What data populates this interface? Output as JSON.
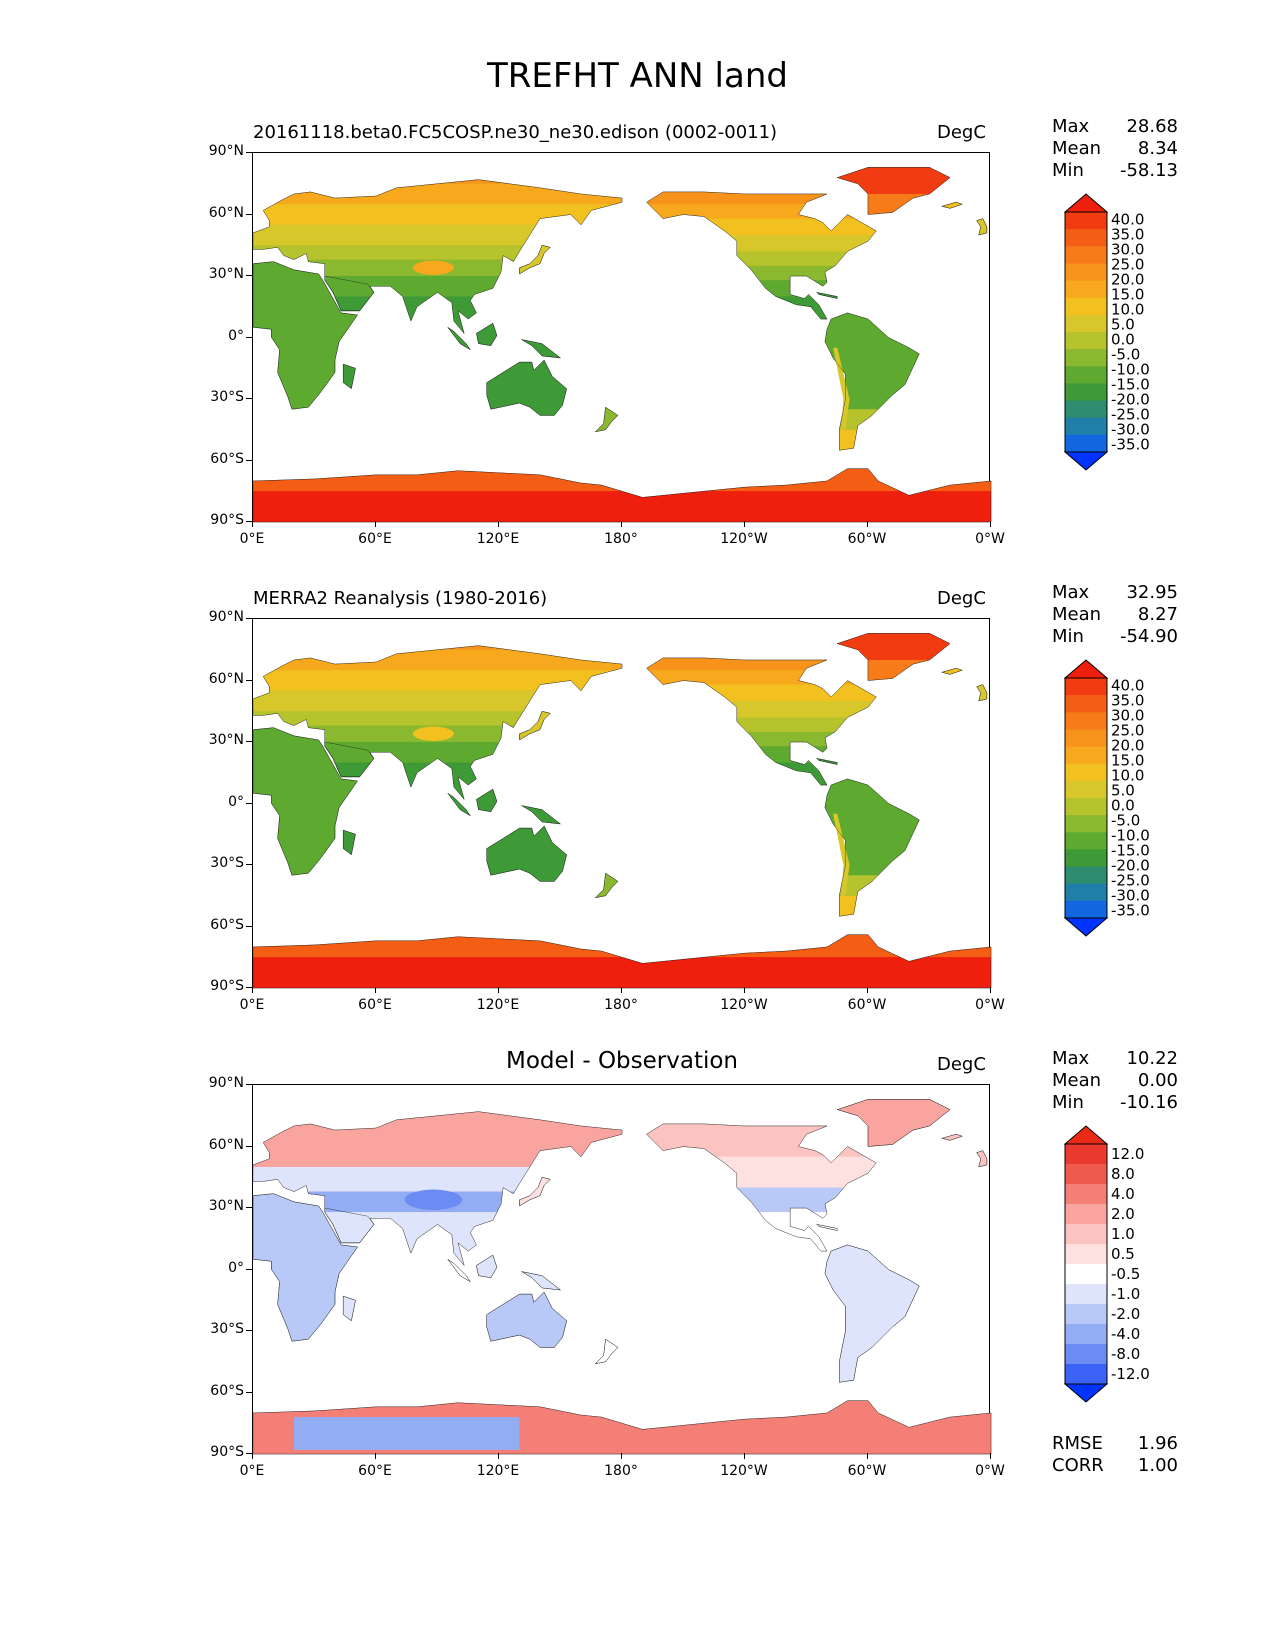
{
  "figure": {
    "suptitle": "TREFHT ANN land"
  },
  "lat_ticks": [
    "90°N",
    "60°N",
    "30°N",
    "0°",
    "30°S",
    "60°S",
    "90°S"
  ],
  "lon_ticks": [
    "0°E",
    "60°E",
    "120°E",
    "180°",
    "120°W",
    "60°W",
    "0°W"
  ],
  "colors": {
    "abs_scale": [
      "#0033ff",
      "#1266e0",
      "#1f7fa8",
      "#2e8c6f",
      "#3d9a36",
      "#5ea930",
      "#8ab82e",
      "#b6c32c",
      "#d7c72a",
      "#f2c01f",
      "#f7a81c",
      "#f7931a",
      "#f77b18",
      "#f45e14",
      "#f03c10",
      "#ee1f0d"
    ],
    "diff_scale": [
      "#0033ff",
      "#3a63f5",
      "#6b8cf2",
      "#93adf4",
      "#b8c8f7",
      "#dde4fb",
      "#ffffff",
      "#fde1e0",
      "#fbc4c1",
      "#f9a49e",
      "#f47f76",
      "#ef5a4f",
      "#ea3a2f",
      "#ea2a17"
    ],
    "frame": "#000000"
  },
  "chart_data": [
    {
      "type": "heatmap",
      "title": "20161118.beta0.FC5COSP.ne30_ne30.edison (0002-0011)",
      "units": "DegC",
      "stats": {
        "max_label": "Max",
        "max": "28.68",
        "mean_label": "Mean",
        "mean": "8.34",
        "min_label": "Min",
        "min": "-58.13"
      },
      "colorbar": {
        "levels": [
          "40.0",
          "35.0",
          "30.0",
          "25.0",
          "20.0",
          "15.0",
          "10.0",
          "5.0",
          "0.0",
          "-5.0",
          "-10.0",
          "-15.0",
          "-20.0",
          "-25.0",
          "-30.0",
          "-35.0"
        ],
        "extend": "both"
      },
      "xlim": [
        0,
        360
      ],
      "ylim": [
        -90,
        90
      ]
    },
    {
      "type": "heatmap",
      "title": "MERRA2 Reanalysis (1980-2016)",
      "units": "DegC",
      "stats": {
        "max_label": "Max",
        "max": "32.95",
        "mean_label": "Mean",
        "mean": "8.27",
        "min_label": "Min",
        "min": "-54.90"
      },
      "colorbar": {
        "levels": [
          "40.0",
          "35.0",
          "30.0",
          "25.0",
          "20.0",
          "15.0",
          "10.0",
          "5.0",
          "0.0",
          "-5.0",
          "-10.0",
          "-15.0",
          "-20.0",
          "-25.0",
          "-30.0",
          "-35.0"
        ],
        "extend": "both"
      },
      "xlim": [
        0,
        360
      ],
      "ylim": [
        -90,
        90
      ]
    },
    {
      "type": "heatmap",
      "title": "Model - Observation",
      "units": "DegC",
      "stats": {
        "max_label": "Max",
        "max": "10.22",
        "mean_label": "Mean",
        "mean": "0.00",
        "min_label": "Min",
        "min": "-10.16"
      },
      "colorbar": {
        "levels": [
          "12.0",
          "8.0",
          "4.0",
          "2.0",
          "1.0",
          "0.5",
          "-0.5",
          "-1.0",
          "-2.0",
          "-4.0",
          "-8.0",
          "-12.0"
        ],
        "extend": "both"
      },
      "metrics": {
        "rmse_label": "RMSE",
        "rmse": "1.96",
        "corr_label": "CORR",
        "corr": "1.00"
      },
      "xlim": [
        0,
        360
      ],
      "ylim": [
        -90,
        90
      ]
    }
  ]
}
